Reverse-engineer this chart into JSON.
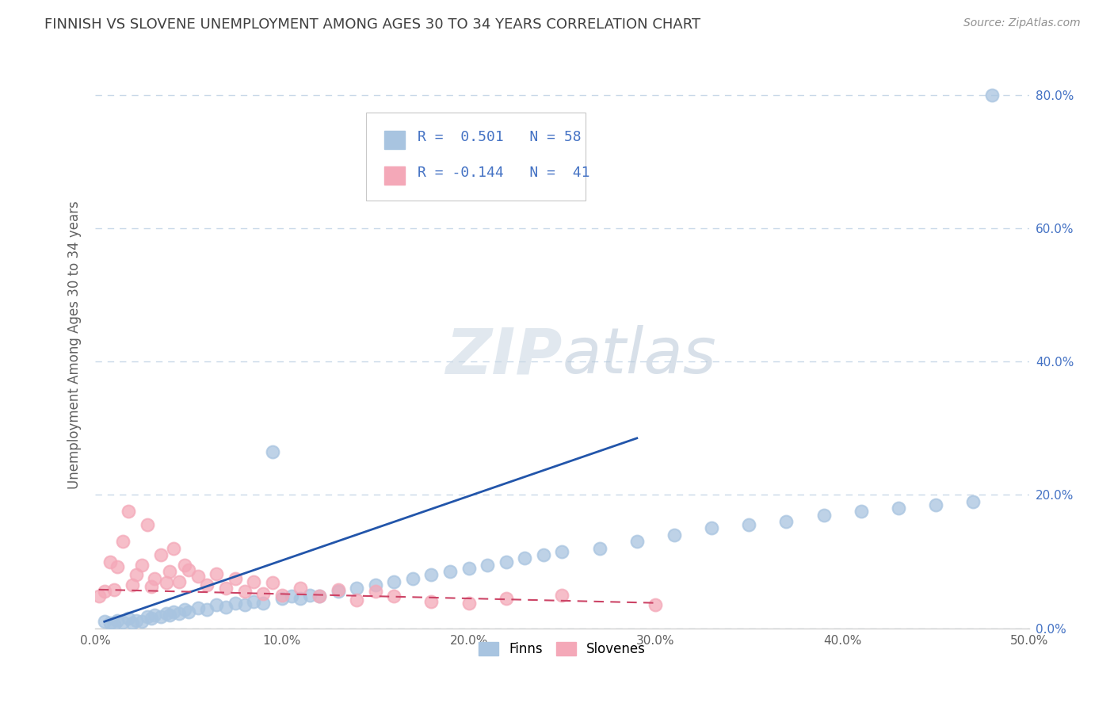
{
  "title": "FINNISH VS SLOVENE UNEMPLOYMENT AMONG AGES 30 TO 34 YEARS CORRELATION CHART",
  "source": "Source: ZipAtlas.com",
  "ylabel": "Unemployment Among Ages 30 to 34 years",
  "xlim": [
    0.0,
    0.5
  ],
  "ylim": [
    0.0,
    0.85
  ],
  "xtick_labels": [
    "0.0%",
    "10.0%",
    "20.0%",
    "30.0%",
    "40.0%",
    "50.0%"
  ],
  "xtick_values": [
    0.0,
    0.1,
    0.2,
    0.3,
    0.4,
    0.5
  ],
  "ytick_labels": [
    "0.0%",
    "20.0%",
    "40.0%",
    "60.0%",
    "80.0%"
  ],
  "ytick_values": [
    0.0,
    0.2,
    0.4,
    0.6,
    0.8
  ],
  "finns_R": 0.501,
  "finns_N": 58,
  "slovenes_R": -0.144,
  "slovenes_N": 41,
  "finns_color": "#a8c4e0",
  "slovenes_color": "#f4a8b8",
  "finns_line_color": "#2255aa",
  "slovenes_line_color": "#cc4466",
  "background_color": "#ffffff",
  "grid_color": "#c8d8e8",
  "title_color": "#404040",
  "source_color": "#909090",
  "legend_text_color": "#4472c4",
  "watermark_color": "#d8e4ef",
  "finns_x": [
    0.005,
    0.008,
    0.01,
    0.012,
    0.015,
    0.018,
    0.02,
    0.022,
    0.025,
    0.028,
    0.03,
    0.032,
    0.035,
    0.038,
    0.04,
    0.042,
    0.045,
    0.048,
    0.05,
    0.055,
    0.06,
    0.065,
    0.07,
    0.075,
    0.08,
    0.085,
    0.09,
    0.095,
    0.1,
    0.105,
    0.11,
    0.115,
    0.12,
    0.13,
    0.14,
    0.15,
    0.16,
    0.17,
    0.18,
    0.19,
    0.2,
    0.21,
    0.22,
    0.23,
    0.24,
    0.25,
    0.27,
    0.29,
    0.31,
    0.33,
    0.35,
    0.37,
    0.39,
    0.41,
    0.43,
    0.45,
    0.47,
    0.48
  ],
  "finns_y": [
    0.01,
    0.008,
    0.005,
    0.012,
    0.009,
    0.015,
    0.008,
    0.012,
    0.01,
    0.018,
    0.015,
    0.02,
    0.018,
    0.022,
    0.02,
    0.025,
    0.022,
    0.028,
    0.025,
    0.03,
    0.028,
    0.035,
    0.032,
    0.038,
    0.035,
    0.04,
    0.038,
    0.265,
    0.045,
    0.048,
    0.045,
    0.05,
    0.048,
    0.055,
    0.06,
    0.065,
    0.07,
    0.075,
    0.08,
    0.085,
    0.09,
    0.095,
    0.1,
    0.105,
    0.11,
    0.115,
    0.12,
    0.13,
    0.14,
    0.15,
    0.155,
    0.16,
    0.17,
    0.175,
    0.18,
    0.185,
    0.19,
    0.8
  ],
  "slovenes_x": [
    0.002,
    0.005,
    0.008,
    0.01,
    0.012,
    0.015,
    0.018,
    0.02,
    0.022,
    0.025,
    0.028,
    0.03,
    0.032,
    0.035,
    0.038,
    0.04,
    0.042,
    0.045,
    0.048,
    0.05,
    0.055,
    0.06,
    0.065,
    0.07,
    0.075,
    0.08,
    0.085,
    0.09,
    0.095,
    0.1,
    0.11,
    0.12,
    0.13,
    0.14,
    0.15,
    0.16,
    0.18,
    0.2,
    0.22,
    0.25,
    0.3
  ],
  "slovenes_y": [
    0.048,
    0.055,
    0.1,
    0.058,
    0.092,
    0.13,
    0.175,
    0.065,
    0.08,
    0.095,
    0.155,
    0.062,
    0.075,
    0.11,
    0.068,
    0.085,
    0.12,
    0.07,
    0.095,
    0.088,
    0.078,
    0.065,
    0.082,
    0.06,
    0.075,
    0.055,
    0.07,
    0.052,
    0.068,
    0.05,
    0.06,
    0.048,
    0.058,
    0.042,
    0.055,
    0.048,
    0.04,
    0.038,
    0.045,
    0.05,
    0.035
  ],
  "finns_trend": [
    0.005,
    0.29
  ],
  "finns_trend_y": [
    0.01,
    0.285
  ],
  "slovenes_trend": [
    0.002,
    0.3
  ],
  "slovenes_trend_y": [
    0.058,
    0.038
  ]
}
